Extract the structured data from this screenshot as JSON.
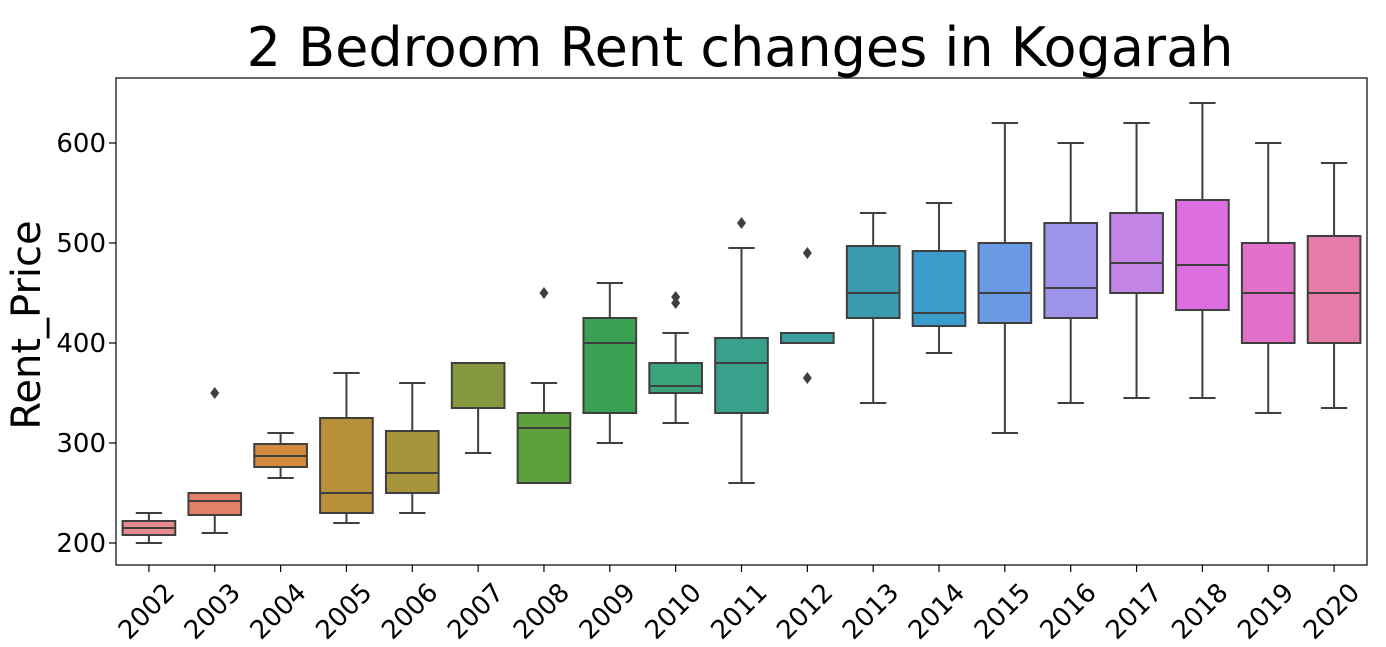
{
  "chart_data": {
    "type": "box",
    "title": "2 Bedroom Rent changes in Kogarah",
    "xlabel": "",
    "ylabel": "Rent_Price",
    "ylim": [
      178,
      665
    ],
    "yticks": [
      200,
      300,
      400,
      500,
      600
    ],
    "grid": false,
    "categories": [
      "2002",
      "2003",
      "2004",
      "2005",
      "2006",
      "2007",
      "2008",
      "2009",
      "2010",
      "2011",
      "2012",
      "2013",
      "2014",
      "2015",
      "2016",
      "2017",
      "2018",
      "2019",
      "2020"
    ],
    "boxes": [
      {
        "category": "2002",
        "whisker_low": 200,
        "q1": 208,
        "median": 215,
        "q3": 222,
        "whisker_high": 230,
        "outliers": [],
        "color": "#e98991"
      },
      {
        "category": "2003",
        "whisker_low": 210,
        "q1": 228,
        "median": 242,
        "q3": 250,
        "whisker_high": 250,
        "outliers": [
          350
        ],
        "color": "#e2806a"
      },
      {
        "category": "2004",
        "whisker_low": 265,
        "q1": 276,
        "median": 287,
        "q3": 299,
        "whisker_high": 310,
        "outliers": [],
        "color": "#d48a3c"
      },
      {
        "category": "2005",
        "whisker_low": 220,
        "q1": 230,
        "median": 250,
        "q3": 325,
        "whisker_high": 370,
        "outliers": [],
        "color": "#b9903a"
      },
      {
        "category": "2006",
        "whisker_low": 230,
        "q1": 250,
        "median": 270,
        "q3": 312,
        "whisker_high": 360,
        "outliers": [],
        "color": "#a7953c"
      },
      {
        "category": "2007",
        "whisker_low": 290,
        "q1": 335,
        "median": 380,
        "q3": 380,
        "whisker_high": 380,
        "outliers": [],
        "color": "#86983f"
      },
      {
        "category": "2008",
        "whisker_low": 260,
        "q1": 260,
        "median": 315,
        "q3": 330,
        "whisker_high": 360,
        "outliers": [
          450
        ],
        "color": "#5ea03b"
      },
      {
        "category": "2009",
        "whisker_low": 300,
        "q1": 330,
        "median": 400,
        "q3": 425,
        "whisker_high": 460,
        "outliers": [],
        "color": "#3aa054"
      },
      {
        "category": "2010",
        "whisker_low": 320,
        "q1": 350,
        "median": 357,
        "q3": 380,
        "whisker_high": 410,
        "outliers": [
          440,
          446
        ],
        "color": "#3ba37c"
      },
      {
        "category": "2011",
        "whisker_low": 260,
        "q1": 330,
        "median": 380,
        "q3": 405,
        "whisker_high": 495,
        "outliers": [
          520
        ],
        "color": "#39a08c"
      },
      {
        "category": "2012",
        "whisker_low": 400,
        "q1": 400,
        "median": 410,
        "q3": 410,
        "whisker_high": 410,
        "outliers": [
          365,
          490
        ],
        "color": "#3a9f9d"
      },
      {
        "category": "2013",
        "whisker_low": 340,
        "q1": 425,
        "median": 450,
        "q3": 497,
        "whisker_high": 530,
        "outliers": [],
        "color": "#3a9bb0"
      },
      {
        "category": "2014",
        "whisker_low": 390,
        "q1": 417,
        "median": 430,
        "q3": 492,
        "whisker_high": 540,
        "outliers": [],
        "color": "#3a9ccb"
      },
      {
        "category": "2015",
        "whisker_low": 310,
        "q1": 420,
        "median": 450,
        "q3": 500,
        "whisker_high": 620,
        "outliers": [],
        "color": "#6b9ae4"
      },
      {
        "category": "2016",
        "whisker_low": 340,
        "q1": 425,
        "median": 455,
        "q3": 520,
        "whisker_high": 600,
        "outliers": [],
        "color": "#9d94ea"
      },
      {
        "category": "2017",
        "whisker_low": 345,
        "q1": 450,
        "median": 480,
        "q3": 530,
        "whisker_high": 620,
        "outliers": [],
        "color": "#c385e6"
      },
      {
        "category": "2018",
        "whisker_low": 345,
        "q1": 433,
        "median": 478,
        "q3": 543,
        "whisker_high": 640,
        "outliers": [],
        "color": "#dc6ee0"
      },
      {
        "category": "2019",
        "whisker_low": 330,
        "q1": 400,
        "median": 450,
        "q3": 500,
        "whisker_high": 600,
        "outliers": [],
        "color": "#e070c8"
      },
      {
        "category": "2020",
        "whisker_low": 335,
        "q1": 400,
        "median": 450,
        "q3": 507,
        "whisker_high": 580,
        "outliers": [],
        "color": "#e47ba9"
      }
    ]
  }
}
